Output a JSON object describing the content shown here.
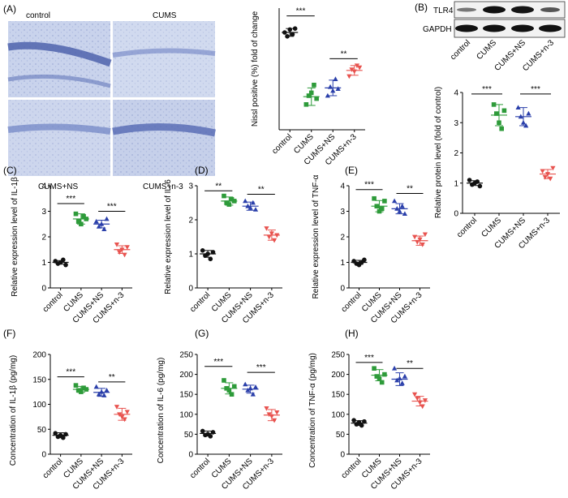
{
  "groups": [
    "control",
    "CUMS",
    "CUMS+NS",
    "CUMS+n-3"
  ],
  "colors": {
    "control": "#111111",
    "CUMS": "#2e9b3a",
    "CUMS+NS": "#2a3faa",
    "CUMS+n-3": "#e8534f",
    "tissue": "#a7b5dc",
    "background": "#ffffff"
  },
  "panel_A": {
    "letter": "(A)",
    "micrograph_labels": [
      "control",
      "CUMS",
      "CUMS+NS",
      "CUMS+n-3"
    ]
  },
  "panel_B": {
    "letter": "(B)",
    "blot_labels": [
      "TLR4",
      "GAPDH"
    ]
  },
  "chart_data": [
    {
      "id": "A",
      "type": "scatter",
      "title": "",
      "ylabel": "Nissl positive (%) fold of change",
      "ylim": [
        0,
        125
      ],
      "yticks": [],
      "categories": [
        "control",
        "CUMS",
        "CUMS+NS",
        "CUMS+n-3"
      ],
      "points": [
        [
          100,
          96,
          103,
          98,
          104
        ],
        [
          26,
          35,
          38,
          46,
          32
        ],
        [
          35,
          44,
          40,
          52,
          42
        ],
        [
          55,
          62,
          60,
          66,
          64
        ]
      ],
      "means": [
        100,
        34,
        43,
        61
      ],
      "sd": [
        4,
        9,
        8,
        5
      ],
      "comparisons": [
        {
          "from": 0,
          "to": 1,
          "label": "***",
          "y": 117
        },
        {
          "from": 2,
          "to": 3,
          "label": "**",
          "y": 73
        }
      ]
    },
    {
      "id": "B",
      "type": "scatter",
      "title": "",
      "ylabel": "Relative protein level (fold of control)",
      "ylim": [
        0,
        4
      ],
      "yticks": [
        0,
        1,
        2,
        3,
        4
      ],
      "categories": [
        "control",
        "CUMS",
        "CUMS+NS",
        "CUMS+n-3"
      ],
      "points": [
        [
          1.1,
          0.95,
          1.0,
          1.05,
          0.9
        ],
        [
          3.6,
          3.3,
          3.0,
          2.8,
          3.4
        ],
        [
          3.5,
          3.2,
          3.0,
          2.9,
          3.3
        ],
        [
          1.4,
          1.2,
          1.3,
          1.15,
          1.5
        ]
      ],
      "means": [
        1.0,
        3.25,
        3.2,
        1.3
      ],
      "sd": [
        0.08,
        0.35,
        0.3,
        0.15
      ],
      "comparisons": [
        {
          "from": 0,
          "to": 1,
          "label": "***",
          "y": 3.95
        },
        {
          "from": 2,
          "to": 3,
          "label": "***",
          "y": 3.95
        }
      ]
    },
    {
      "id": "C",
      "type": "scatter",
      "title": "",
      "ylabel": "Relative expression level of IL-1β",
      "ylim": [
        0,
        4
      ],
      "yticks": [
        0,
        1,
        2,
        3,
        4
      ],
      "categories": [
        "control",
        "CUMS",
        "CUMS+NS",
        "CUMS+n-3"
      ],
      "points": [
        [
          1.05,
          0.95,
          1.0,
          1.1,
          0.9
        ],
        [
          2.9,
          2.6,
          2.5,
          2.8,
          2.7
        ],
        [
          2.6,
          2.4,
          2.5,
          2.3,
          2.7
        ],
        [
          1.7,
          1.4,
          1.5,
          1.3,
          1.6
        ]
      ],
      "means": [
        1.0,
        2.7,
        2.5,
        1.5
      ],
      "sd": [
        0.07,
        0.2,
        0.15,
        0.15
      ],
      "comparisons": [
        {
          "from": 0,
          "to": 1,
          "label": "***",
          "y": 3.3
        },
        {
          "from": 2,
          "to": 3,
          "label": "***",
          "y": 3.0
        }
      ]
    },
    {
      "id": "D",
      "type": "scatter",
      "title": "",
      "ylabel": "Relative expression level of IL-6",
      "ylim": [
        0,
        3
      ],
      "yticks": [
        0,
        1,
        2,
        3
      ],
      "categories": [
        "control",
        "CUMS",
        "CUMS+NS",
        "CUMS+n-3"
      ],
      "points": [
        [
          1.1,
          0.95,
          1.0,
          0.85,
          1.05
        ],
        [
          2.7,
          2.5,
          2.45,
          2.6,
          2.55
        ],
        [
          2.55,
          2.4,
          2.35,
          2.5,
          2.3
        ],
        [
          1.75,
          1.5,
          1.6,
          1.4,
          1.55
        ]
      ],
      "means": [
        1.0,
        2.55,
        2.4,
        1.55
      ],
      "sd": [
        0.1,
        0.12,
        0.12,
        0.15
      ],
      "comparisons": [
        {
          "from": 0,
          "to": 1,
          "label": "**",
          "y": 2.85
        },
        {
          "from": 2,
          "to": 3,
          "label": "**",
          "y": 2.75
        }
      ]
    },
    {
      "id": "E",
      "type": "scatter",
      "title": "",
      "ylabel": "Relative expression level of TNF-α",
      "ylim": [
        0,
        4
      ],
      "yticks": [
        0,
        1,
        2,
        3,
        4
      ],
      "categories": [
        "control",
        "CUMS",
        "CUMS+NS",
        "CUMS+n-3"
      ],
      "points": [
        [
          1.05,
          0.95,
          0.9,
          1.0,
          1.1
        ],
        [
          3.5,
          3.2,
          3.0,
          3.1,
          3.4
        ],
        [
          3.4,
          3.1,
          3.0,
          3.2,
          2.9
        ],
        [
          2.0,
          1.8,
          1.9,
          1.7,
          2.1
        ]
      ],
      "means": [
        1.0,
        3.2,
        3.1,
        1.85
      ],
      "sd": [
        0.08,
        0.22,
        0.2,
        0.18
      ],
      "comparisons": [
        {
          "from": 0,
          "to": 1,
          "label": "***",
          "y": 3.85
        },
        {
          "from": 2,
          "to": 3,
          "label": "**",
          "y": 3.7
        }
      ]
    },
    {
      "id": "F",
      "type": "scatter",
      "title": "",
      "ylabel": "Concentration of IL-1β (pg/mg)",
      "ylim": [
        0,
        200
      ],
      "yticks": [
        0,
        50,
        100,
        150,
        200
      ],
      "categories": [
        "control",
        "CUMS",
        "CUMS+NS",
        "CUMS+n-3"
      ],
      "points": [
        [
          42,
          35,
          38,
          33,
          40
        ],
        [
          138,
          128,
          125,
          133,
          130
        ],
        [
          135,
          120,
          125,
          118,
          128
        ],
        [
          95,
          80,
          75,
          70,
          85
        ]
      ],
      "means": [
        38,
        130,
        124,
        80
      ],
      "sd": [
        5,
        6,
        8,
        12
      ],
      "comparisons": [
        {
          "from": 0,
          "to": 1,
          "label": "***",
          "y": 155
        },
        {
          "from": 2,
          "to": 3,
          "label": "**",
          "y": 145
        }
      ]
    },
    {
      "id": "G",
      "type": "scatter",
      "title": "",
      "ylabel": "Concentration of IL-6 (pg/mg)",
      "ylim": [
        0,
        250
      ],
      "yticks": [
        0,
        50,
        100,
        150,
        200,
        250
      ],
      "categories": [
        "control",
        "CUMS",
        "CUMS+NS",
        "CUMS+n-3"
      ],
      "points": [
        [
          58,
          48,
          50,
          45,
          55
        ],
        [
          185,
          165,
          160,
          150,
          170
        ],
        [
          175,
          160,
          165,
          150,
          168
        ],
        [
          115,
          100,
          95,
          85,
          105
        ]
      ],
      "means": [
        52,
        165,
        163,
        98
      ],
      "sd": [
        6,
        14,
        10,
        14
      ],
      "comparisons": [
        {
          "from": 0,
          "to": 1,
          "label": "***",
          "y": 220
        },
        {
          "from": 2,
          "to": 3,
          "label": "***",
          "y": 205
        }
      ]
    },
    {
      "id": "H",
      "type": "scatter",
      "title": "",
      "ylabel": "Concentration of TNF-α (pg/mg)",
      "ylim": [
        0,
        250
      ],
      "yticks": [
        0,
        50,
        100,
        150,
        200,
        250
      ],
      "categories": [
        "control",
        "CUMS",
        "CUMS+NS",
        "CUMS+n-3"
      ],
      "points": [
        [
          85,
          75,
          80,
          72,
          82
        ],
        [
          215,
          195,
          190,
          180,
          200
        ],
        [
          215,
          185,
          190,
          178,
          195
        ],
        [
          150,
          140,
          130,
          120,
          135
        ]
      ],
      "means": [
        78,
        198,
        188,
        133
      ],
      "sd": [
        6,
        14,
        16,
        12
      ],
      "comparisons": [
        {
          "from": 0,
          "to": 1,
          "label": "***",
          "y": 230
        },
        {
          "from": 2,
          "to": 3,
          "label": "**",
          "y": 215
        }
      ]
    }
  ]
}
